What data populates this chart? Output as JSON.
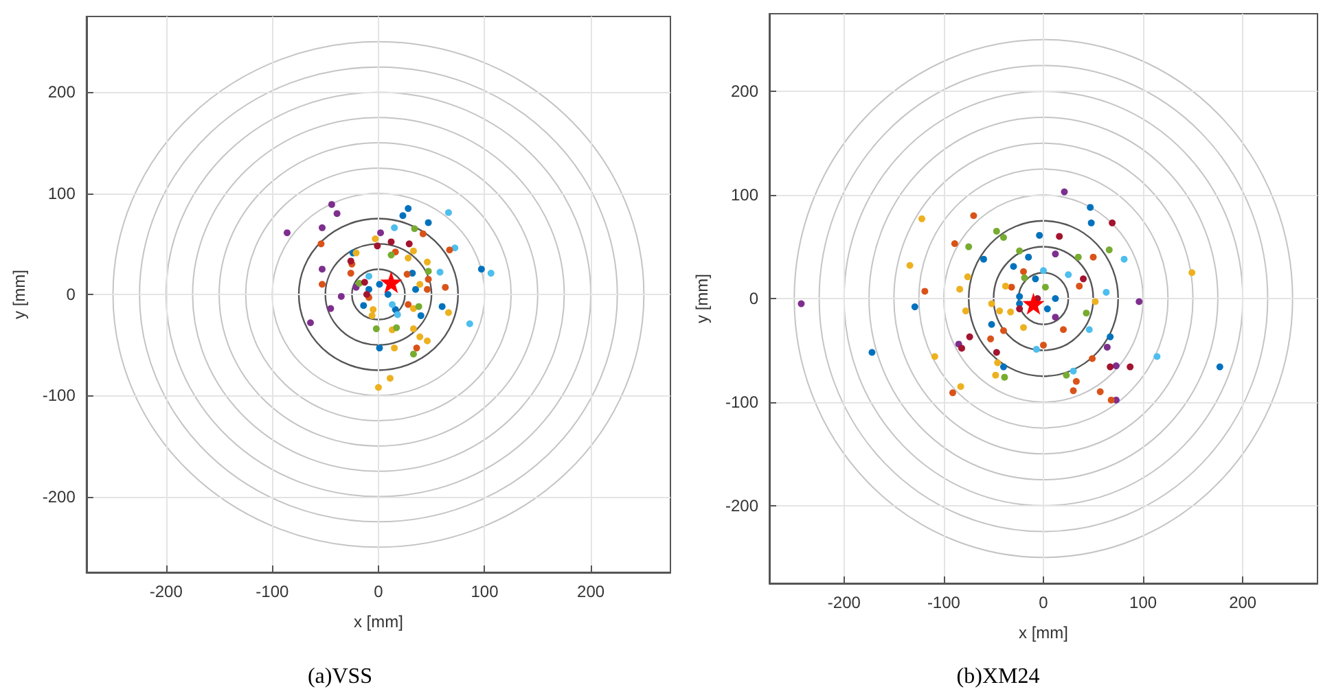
{
  "chart_data": [
    {
      "type": "scatter",
      "title": "(a)VSS",
      "xlabel": "x [mm]",
      "ylabel": "y [mm]",
      "xlim": [
        -275,
        275
      ],
      "ylim": [
        -275,
        275
      ],
      "xticks": [
        -200,
        -100,
        0,
        100,
        200
      ],
      "yticks": [
        -200,
        -100,
        0,
        100,
        200
      ],
      "grid": true,
      "marker": "circle",
      "series": [
        {
          "color": "#7e2f8e",
          "x": [
            -86,
            -44,
            -39,
            -53,
            -53,
            -64,
            -45,
            -35,
            -21,
            2
          ],
          "values": [
            61,
            89,
            80,
            66,
            25,
            -28,
            -14,
            -2,
            7,
            61
          ]
        },
        {
          "color": "#0072bd",
          "x": [
            28,
            23,
            47,
            97,
            60,
            32,
            35,
            40,
            1,
            16,
            -14,
            -9,
            1,
            9,
            -24
          ],
          "values": [
            85,
            78,
            71,
            25,
            -12,
            21,
            5,
            -21,
            -53,
            -15,
            -11,
            5,
            10,
            0,
            41
          ]
        },
        {
          "color": "#4dbeee",
          "x": [
            66,
            72,
            106,
            86,
            58,
            15,
            -9,
            18,
            13
          ],
          "values": [
            81,
            46,
            21,
            -29,
            22,
            66,
            18,
            -20,
            -10
          ]
        },
        {
          "color": "#d95319",
          "x": [
            -54,
            42,
            67,
            63,
            47,
            46,
            27,
            28,
            16,
            -26,
            -25,
            -53,
            36,
            -9
          ],
          "values": [
            50,
            60,
            44,
            7,
            15,
            5,
            20,
            -10,
            42,
            21,
            30,
            10,
            -53,
            -3
          ]
        },
        {
          "color": "#edb120",
          "x": [
            -3,
            33,
            46,
            28,
            39,
            33,
            66,
            33,
            39,
            46,
            15,
            13,
            11,
            0,
            -6,
            -5,
            -21
          ],
          "values": [
            55,
            43,
            32,
            36,
            10,
            -14,
            -18,
            -34,
            -42,
            -46,
            -53,
            -35,
            -83,
            -92,
            -21,
            -15,
            41
          ]
        },
        {
          "color": "#77ac30",
          "x": [
            34,
            47,
            38,
            33,
            17,
            -2,
            12,
            -18
          ],
          "values": [
            65,
            23,
            -12,
            -59,
            -33,
            -34,
            39,
            11
          ]
        },
        {
          "color": "#a2142f",
          "x": [
            -1,
            12,
            29,
            -26,
            -13,
            -11
          ],
          "values": [
            48,
            52,
            50,
            33,
            12,
            0
          ]
        },
        {
          "color": "#ff0000",
          "marker": "star",
          "x": [
            12
          ],
          "values": [
            12
          ]
        }
      ]
    },
    {
      "type": "scatter",
      "title": "(b)XM24",
      "xlabel": "x [mm]",
      "ylabel": "y [mm]",
      "xlim": [
        -275,
        275
      ],
      "ylim": [
        -275,
        275
      ],
      "xticks": [
        -200,
        -100,
        0,
        100,
        200
      ],
      "yticks": [
        -200,
        -100,
        0,
        100,
        200
      ],
      "grid": true,
      "marker": "circle",
      "series": [
        {
          "color": "#7e2f8e",
          "x": [
            21,
            -243,
            96,
            12,
            12,
            -85,
            64,
            73,
            73
          ],
          "values": [
            103,
            -5,
            -3,
            43,
            -18,
            -44,
            -47,
            -65,
            -98
          ]
        },
        {
          "color": "#0072bd",
          "x": [
            47,
            48,
            -4,
            -60,
            -15,
            -30,
            -24,
            -24,
            -52,
            -129,
            -172,
            177,
            67,
            -40,
            4,
            12,
            -8
          ],
          "values": [
            88,
            73,
            61,
            38,
            40,
            31,
            2,
            -5,
            -25,
            -8,
            -52,
            -66,
            -37,
            -66,
            -10,
            0,
            19
          ]
        },
        {
          "color": "#4dbeee",
          "x": [
            0,
            25,
            63,
            81,
            46,
            114,
            30,
            -7
          ],
          "values": [
            27,
            23,
            6,
            38,
            -30,
            -56,
            -70,
            -49
          ]
        },
        {
          "color": "#d95319",
          "x": [
            -70,
            -89,
            -119,
            -91,
            -53,
            -32,
            36,
            50,
            20,
            0,
            49,
            33,
            30,
            57,
            68,
            -20,
            -40
          ],
          "values": [
            80,
            53,
            7,
            -91,
            -39,
            11,
            12,
            40,
            -30,
            -45,
            -58,
            -80,
            -89,
            -90,
            -98,
            26,
            -31
          ]
        },
        {
          "color": "#edb120",
          "x": [
            -122,
            -134,
            -76,
            -84,
            -78,
            -52,
            -44,
            -33,
            -20,
            -46,
            -48,
            -83,
            -109,
            149,
            52,
            -38
          ],
          "values": [
            77,
            32,
            21,
            9,
            -12,
            -5,
            -12,
            -13,
            -28,
            -62,
            -74,
            -85,
            -56,
            25,
            -3,
            12
          ]
        },
        {
          "color": "#77ac30",
          "x": [
            -47,
            -40,
            -75,
            -24,
            35,
            66,
            43,
            23,
            -39,
            -19,
            2
          ],
          "values": [
            65,
            59,
            50,
            46,
            40,
            47,
            -14,
            -74,
            -76,
            20,
            11
          ]
        },
        {
          "color": "#a2142f",
          "x": [
            16,
            69,
            40,
            -74,
            -82,
            -47,
            67,
            87,
            -24,
            -6
          ],
          "values": [
            60,
            73,
            19,
            -37,
            -48,
            -52,
            -66,
            -66,
            -10,
            0
          ]
        },
        {
          "color": "#ff0000",
          "marker": "star",
          "x": [
            -10
          ],
          "values": [
            -5
          ]
        }
      ]
    }
  ]
}
